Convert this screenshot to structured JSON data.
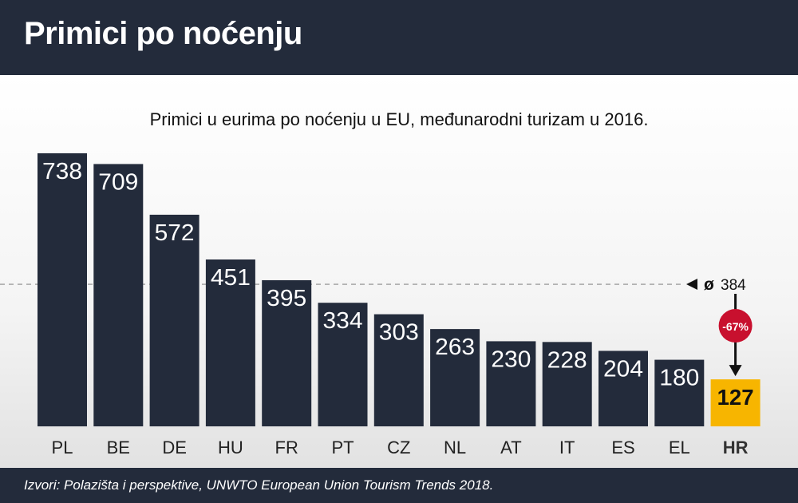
{
  "header": {
    "title": "Primici po noćenju"
  },
  "footer": {
    "source": "Izvori: Polazišta i perspektive, UNWTO European Union Tourism Trends 2018."
  },
  "colors": {
    "bar": "#232b3b",
    "highlight_bar": "#f7b500",
    "badge": "#c8102e",
    "average_line": "#8a8a8a"
  },
  "chart_data": {
    "type": "bar",
    "title": "Primici u eurima po noćenju u EU, međunarodni turizam u 2016.",
    "categories": [
      "PL",
      "BE",
      "DE",
      "HU",
      "FR",
      "PT",
      "CZ",
      "NL",
      "AT",
      "IT",
      "ES",
      "EL",
      "HR"
    ],
    "values": [
      738,
      709,
      572,
      451,
      395,
      334,
      303,
      263,
      230,
      228,
      204,
      180,
      127
    ],
    "highlight": "HR",
    "average": {
      "label": "ø",
      "value": 384
    },
    "annotation": {
      "text": "-67%"
    },
    "ylim": [
      0,
      750
    ],
    "grid": false,
    "legend": "none"
  }
}
